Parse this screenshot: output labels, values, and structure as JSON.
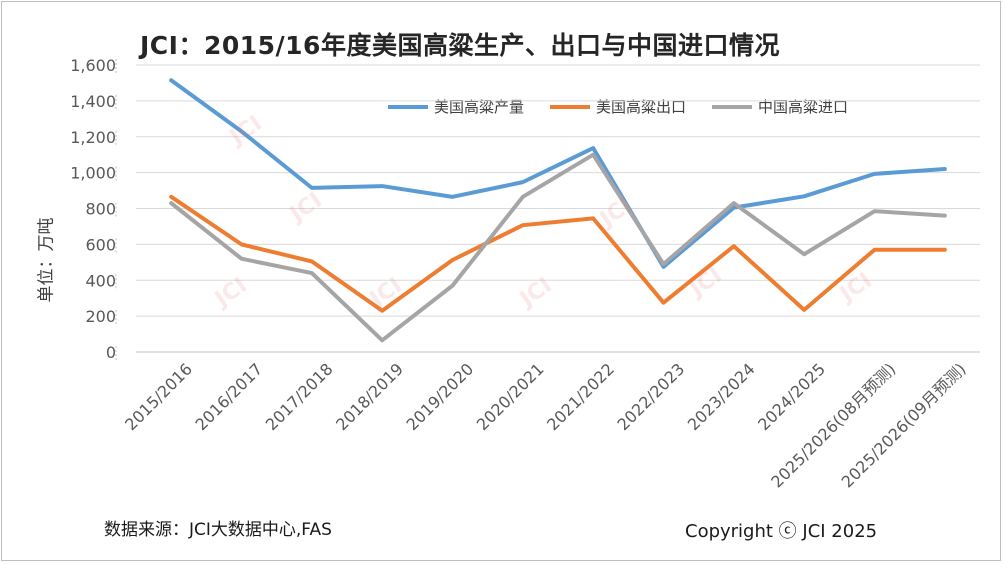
{
  "title": "JCI：2015/16年度美国高粱生产、出口与中国进口情况",
  "ylabel": "单位：万吨",
  "source": "数据来源：JCI大数据中心,FAS",
  "copyright": "Copyright ⓒ JCI 2025",
  "watermark": "JCI",
  "colors": {
    "production": "#5b9bd5",
    "export": "#ed7d31",
    "import": "#a5a5a5",
    "grid": "#d9d9d9",
    "text": "#595959"
  },
  "chart_data": {
    "type": "line",
    "categories": [
      "2015/2016",
      "2016/2017",
      "2017/2018",
      "2018/2019",
      "2019/2020",
      "2020/2021",
      "2021/2022",
      "2022/2023",
      "2023/2024",
      "2024/2025",
      "2025/2026(08月预测)",
      "2025/2026(09月预测)"
    ],
    "series": [
      {
        "name": "美国高粱产量",
        "color": "#5b9bd5",
        "values": [
          1515,
          1230,
          915,
          925,
          865,
          947,
          1137,
          475,
          805,
          868,
          993,
          1020
        ]
      },
      {
        "name": "美国高粱出口",
        "color": "#ed7d31",
        "values": [
          865,
          600,
          505,
          230,
          513,
          707,
          745,
          275,
          590,
          235,
          570,
          570
        ]
      },
      {
        "name": "中国高粱进口",
        "color": "#a5a5a5",
        "values": [
          830,
          520,
          440,
          65,
          370,
          865,
          1100,
          490,
          830,
          545,
          785,
          760
        ]
      }
    ],
    "ylim": [
      0,
      1600
    ],
    "yticks": [
      "0",
      "200",
      "400",
      "600",
      "800",
      "1,000",
      "1,200",
      "1,400",
      "1,600"
    ],
    "ytick_values": [
      0,
      200,
      400,
      600,
      800,
      1000,
      1200,
      1400,
      1600
    ],
    "grid": true,
    "legend_position": "top-center"
  }
}
